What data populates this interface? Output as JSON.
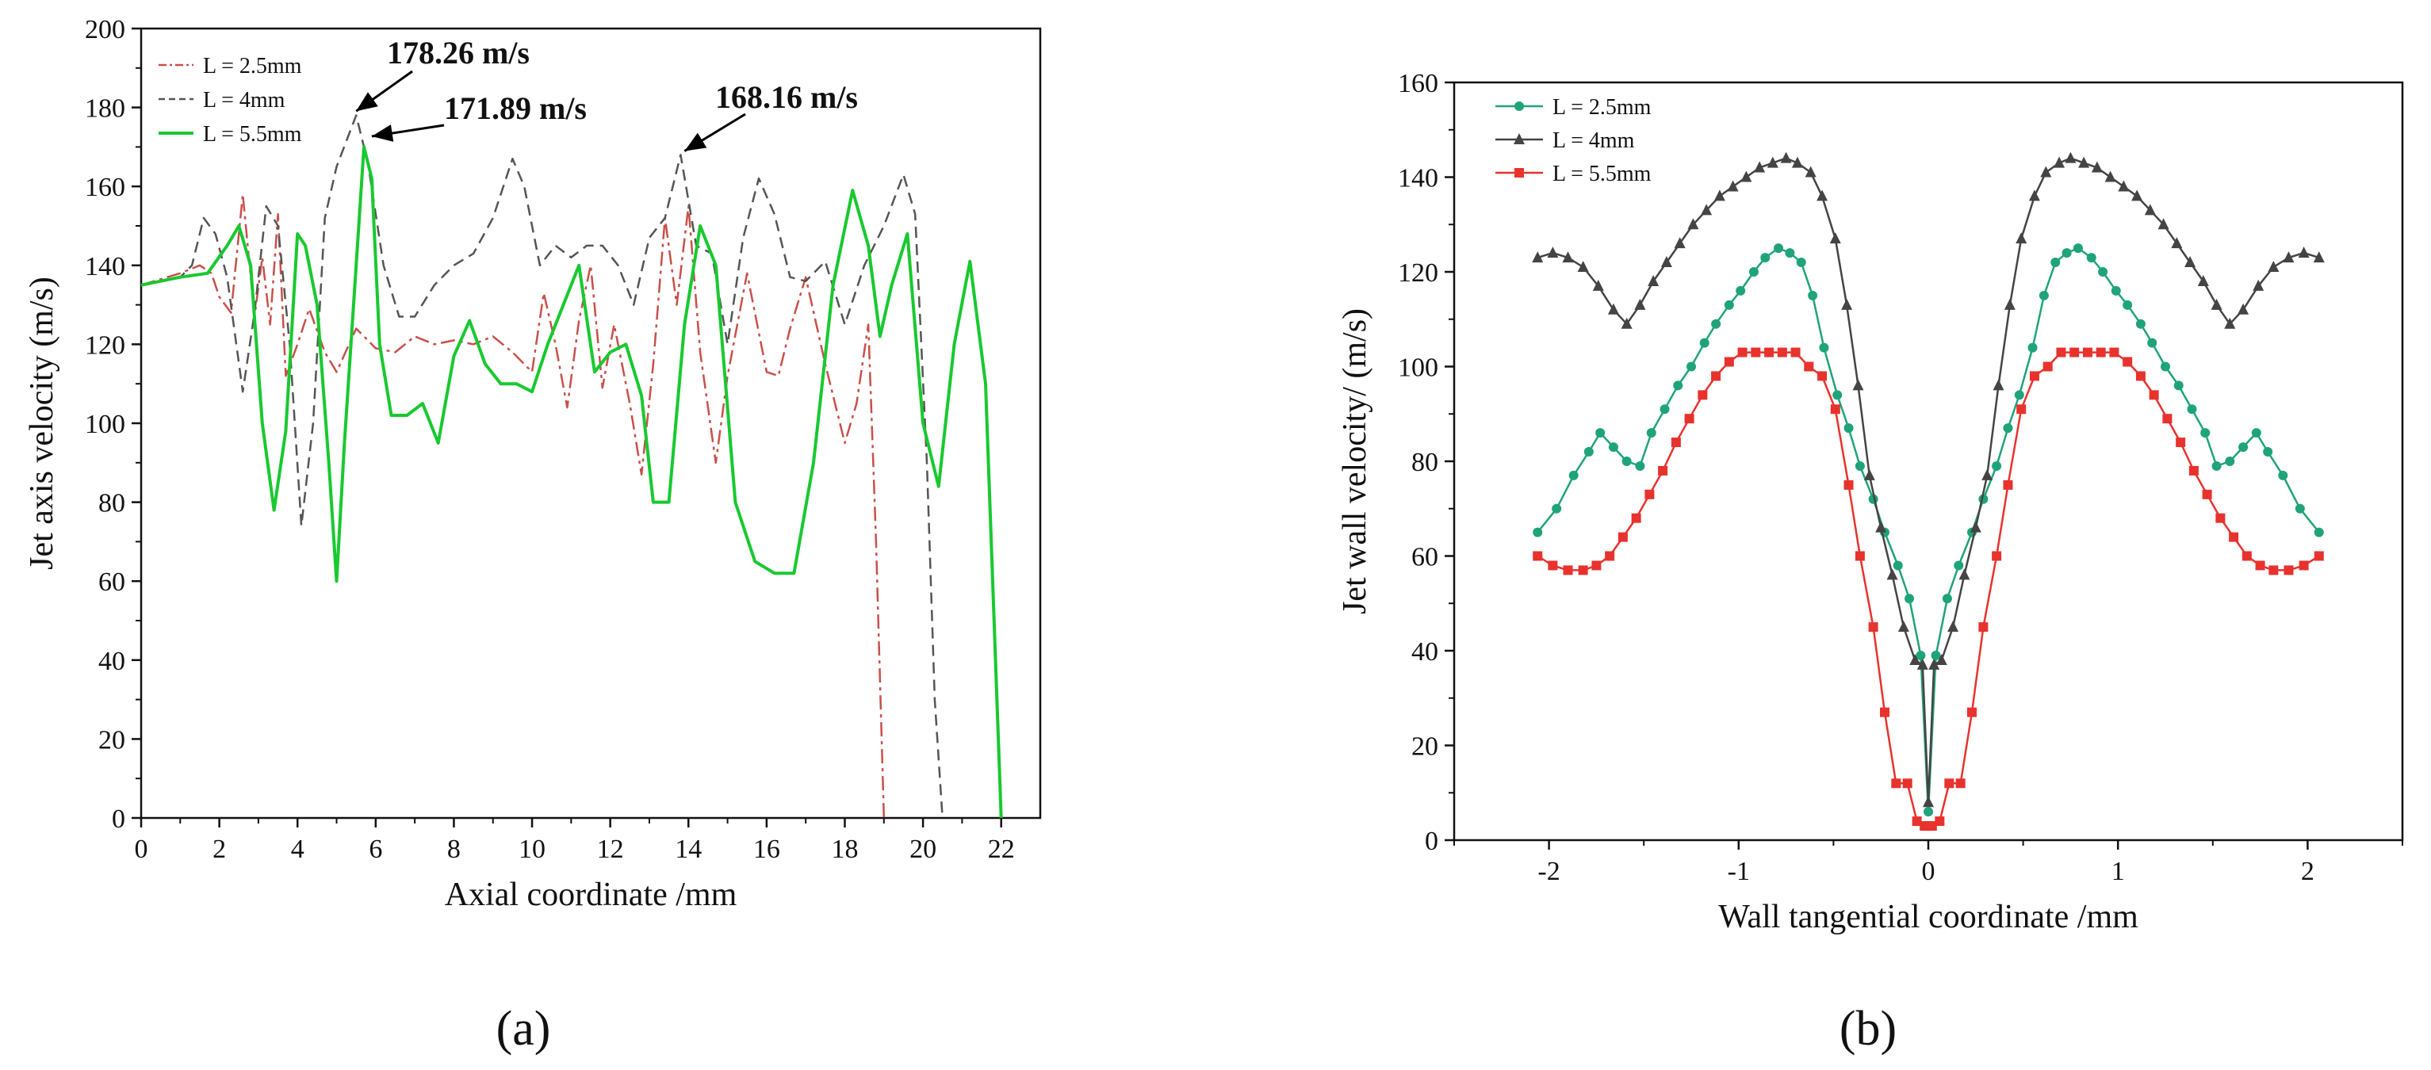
{
  "chart_data": [
    {
      "panel_label": "(a)",
      "type": "line",
      "xlabel": "Axial coordinate /mm",
      "ylabel": "Jet axis velocity (m/s)",
      "xlim": [
        0,
        23
      ],
      "ylim": [
        0,
        200
      ],
      "xticks": [
        0,
        2,
        4,
        6,
        8,
        10,
        12,
        14,
        16,
        18,
        20,
        22
      ],
      "yticks": [
        0,
        20,
        40,
        60,
        80,
        100,
        120,
        140,
        160,
        180,
        200
      ],
      "grid": false,
      "legend_position": "top-left",
      "series": [
        {
          "name": "L = 2.5mm",
          "color": "#c8504a",
          "style": "dashdot",
          "x": [
            0,
            1,
            1.5,
            1.8,
            2.0,
            2.3,
            2.6,
            2.9,
            3.1,
            3.3,
            3.5,
            3.7,
            4.0,
            4.3,
            4.7,
            5.0,
            5.5,
            6.0,
            6.5,
            7.0,
            7.5,
            8.0,
            8.5,
            9.0,
            9.5,
            10.0,
            10.3,
            10.6,
            10.9,
            11.2,
            11.5,
            11.8,
            12.1,
            12.5,
            12.8,
            13.1,
            13.4,
            13.7,
            14.0,
            14.3,
            14.7,
            15.0,
            15.5,
            16.0,
            16.3,
            16.6,
            17.0,
            17.5,
            18.0,
            18.3,
            18.6,
            18.8,
            19.0
          ],
          "y": [
            135,
            138,
            140,
            138,
            132,
            128,
            158,
            127,
            142,
            125,
            153,
            112,
            120,
            129,
            118,
            113,
            124,
            119,
            118,
            122,
            120,
            121,
            120,
            122,
            118,
            113,
            133,
            120,
            104,
            126,
            140,
            109,
            125,
            105,
            87,
            115,
            152,
            130,
            155,
            118,
            90,
            112,
            138,
            113,
            112,
            124,
            137,
            115,
            95,
            105,
            125,
            70,
            0
          ]
        },
        {
          "name": "L = 4mm",
          "color": "#555555",
          "style": "dashed",
          "x": [
            0,
            1,
            1.3,
            1.6,
            1.9,
            2.2,
            2.6,
            2.9,
            3.2,
            3.5,
            3.8,
            4.1,
            4.4,
            4.7,
            5.0,
            5.5,
            5.8,
            6.2,
            6.6,
            7.0,
            7.5,
            8.0,
            8.5,
            9.0,
            9.5,
            9.8,
            10.2,
            10.6,
            11.0,
            11.4,
            11.8,
            12.2,
            12.6,
            13.0,
            13.4,
            13.8,
            14.2,
            14.6,
            15.0,
            15.4,
            15.8,
            16.2,
            16.6,
            17.0,
            17.5,
            18.0,
            18.5,
            19.0,
            19.5,
            19.8,
            20.1,
            20.3,
            20.5
          ],
          "y": [
            135,
            137,
            140,
            152,
            148,
            137,
            108,
            128,
            155,
            150,
            120,
            74,
            100,
            152,
            165,
            178,
            166,
            140,
            127,
            127,
            135,
            140,
            143,
            152,
            167,
            160,
            140,
            145,
            142,
            145,
            145,
            140,
            130,
            147,
            152,
            168,
            145,
            143,
            120,
            147,
            162,
            153,
            137,
            136,
            141,
            125,
            140,
            150,
            163,
            153,
            90,
            30,
            0
          ]
        },
        {
          "name": "L = 5.5mm",
          "color": "#18c92f",
          "style": "solid",
          "x": [
            0,
            1,
            1.7,
            2.2,
            2.5,
            2.8,
            3.1,
            3.4,
            3.7,
            4.0,
            4.2,
            4.5,
            4.8,
            5.0,
            5.2,
            5.5,
            5.7,
            5.9,
            6.1,
            6.4,
            6.8,
            7.2,
            7.6,
            8.0,
            8.4,
            8.8,
            9.2,
            9.6,
            10.0,
            10.4,
            10.8,
            11.2,
            11.6,
            12.0,
            12.4,
            12.8,
            13.1,
            13.5,
            13.9,
            14.3,
            14.7,
            15.2,
            15.7,
            16.2,
            16.7,
            17.2,
            17.7,
            18.2,
            18.6,
            18.9,
            19.2,
            19.6,
            20.0,
            20.4,
            20.8,
            21.2,
            21.6,
            22.0
          ],
          "y": [
            135,
            137,
            138,
            145,
            150,
            140,
            100,
            78,
            98,
            148,
            145,
            130,
            90,
            60,
            95,
            140,
            170,
            162,
            120,
            102,
            102,
            105,
            95,
            117,
            126,
            115,
            110,
            110,
            108,
            120,
            130,
            140,
            113,
            118,
            120,
            107,
            80,
            80,
            125,
            150,
            140,
            80,
            65,
            62,
            62,
            90,
            135,
            159,
            145,
            122,
            135,
            148,
            100,
            84,
            120,
            141,
            110,
            0
          ]
        }
      ],
      "annotations": [
        {
          "text": "178.26 m/s",
          "x": 5.5,
          "y": 178.26
        },
        {
          "text": "171.89 m/s",
          "x": 5.9,
          "y": 171.89
        },
        {
          "text": "168.16 m/s",
          "x": 13.9,
          "y": 168.16
        }
      ]
    },
    {
      "panel_label": "(b)",
      "type": "line",
      "xlabel": "Wall tangential coordinate /mm",
      "ylabel": "Jet wall velocity/ (m/s)",
      "xlim": [
        -2.5,
        2.5
      ],
      "ylim": [
        0,
        160
      ],
      "xticks": [
        -2,
        -1,
        0,
        1,
        2
      ],
      "yticks": [
        0,
        20,
        40,
        60,
        80,
        100,
        120,
        140,
        160
      ],
      "grid": false,
      "legend_position": "top-left",
      "series": [
        {
          "name": "L = 2.5mm",
          "color": "#1fa37a",
          "marker": "circle",
          "x": [
            -2.06,
            -1.96,
            -1.87,
            -1.79,
            -1.73,
            -1.66,
            -1.59,
            -1.52,
            -1.46,
            -1.39,
            -1.32,
            -1.25,
            -1.18,
            -1.12,
            -1.05,
            -0.99,
            -0.92,
            -0.86,
            -0.79,
            -0.73,
            -0.67,
            -0.61,
            -0.55,
            -0.48,
            -0.42,
            -0.36,
            -0.29,
            -0.23,
            -0.16,
            -0.1,
            -0.04,
            0,
            0.04,
            0.1,
            0.16,
            0.23,
            0.29,
            0.36,
            0.42,
            0.48,
            0.55,
            0.61,
            0.67,
            0.73,
            0.79,
            0.86,
            0.92,
            0.99,
            1.05,
            1.12,
            1.18,
            1.25,
            1.32,
            1.39,
            1.46,
            1.52,
            1.59,
            1.66,
            1.73,
            1.79,
            1.87,
            1.96,
            2.06
          ],
          "y": [
            65,
            70,
            77,
            82,
            86,
            83,
            80,
            79,
            86,
            91,
            96,
            100,
            105,
            109,
            113,
            116,
            120,
            123,
            125,
            124,
            122,
            115,
            104,
            94,
            87,
            79,
            72,
            65,
            58,
            51,
            39,
            6,
            39,
            51,
            58,
            65,
            72,
            79,
            87,
            94,
            104,
            115,
            122,
            124,
            125,
            123,
            120,
            116,
            113,
            109,
            105,
            100,
            96,
            91,
            86,
            79,
            80,
            83,
            86,
            82,
            77,
            70,
            65
          ]
        },
        {
          "name": "L = 4mm",
          "color": "#444444",
          "marker": "triangle",
          "x": [
            -2.06,
            -1.98,
            -1.9,
            -1.82,
            -1.74,
            -1.66,
            -1.59,
            -1.52,
            -1.45,
            -1.38,
            -1.31,
            -1.24,
            -1.17,
            -1.1,
            -1.03,
            -0.96,
            -0.89,
            -0.82,
            -0.75,
            -0.69,
            -0.62,
            -0.56,
            -0.49,
            -0.43,
            -0.37,
            -0.31,
            -0.25,
            -0.19,
            -0.13,
            -0.07,
            -0.03,
            0,
            0.03,
            0.07,
            0.13,
            0.19,
            0.25,
            0.31,
            0.37,
            0.43,
            0.49,
            0.56,
            0.62,
            0.69,
            0.75,
            0.82,
            0.89,
            0.96,
            1.03,
            1.1,
            1.17,
            1.24,
            1.31,
            1.38,
            1.45,
            1.52,
            1.59,
            1.66,
            1.74,
            1.82,
            1.9,
            1.98,
            2.06
          ],
          "y": [
            123,
            124,
            123,
            121,
            117,
            112,
            109,
            113,
            118,
            122,
            126,
            130,
            133,
            136,
            138,
            140,
            142,
            143,
            144,
            143,
            141,
            136,
            127,
            113,
            96,
            77,
            66,
            56,
            45,
            38,
            37,
            8,
            37,
            38,
            45,
            56,
            66,
            77,
            96,
            113,
            127,
            136,
            141,
            143,
            144,
            143,
            142,
            140,
            138,
            136,
            133,
            130,
            126,
            122,
            118,
            113,
            109,
            112,
            117,
            121,
            123,
            124,
            123
          ]
        },
        {
          "name": "L = 5.5mm",
          "color": "#e8322d",
          "marker": "square",
          "x": [
            -2.06,
            -1.98,
            -1.9,
            -1.82,
            -1.75,
            -1.68,
            -1.61,
            -1.54,
            -1.47,
            -1.4,
            -1.33,
            -1.26,
            -1.19,
            -1.12,
            -1.05,
            -0.98,
            -0.91,
            -0.84,
            -0.77,
            -0.7,
            -0.63,
            -0.56,
            -0.49,
            -0.42,
            -0.36,
            -0.29,
            -0.23,
            -0.17,
            -0.11,
            -0.06,
            -0.02,
            0,
            0.02,
            0.06,
            0.11,
            0.17,
            0.23,
            0.29,
            0.36,
            0.42,
            0.49,
            0.56,
            0.63,
            0.7,
            0.77,
            0.84,
            0.91,
            0.98,
            1.05,
            1.12,
            1.19,
            1.26,
            1.33,
            1.4,
            1.47,
            1.54,
            1.61,
            1.68,
            1.75,
            1.82,
            1.9,
            1.98,
            2.06
          ],
          "y": [
            60,
            58,
            57,
            57,
            58,
            60,
            64,
            68,
            73,
            78,
            84,
            89,
            94,
            98,
            101,
            103,
            103,
            103,
            103,
            103,
            100,
            98,
            91,
            75,
            60,
            45,
            27,
            12,
            12,
            4,
            3,
            3,
            3,
            4,
            12,
            12,
            27,
            45,
            60,
            75,
            91,
            98,
            100,
            103,
            103,
            103,
            103,
            103,
            101,
            98,
            94,
            89,
            84,
            78,
            73,
            68,
            64,
            60,
            58,
            57,
            57,
            58,
            60
          ]
        }
      ]
    }
  ]
}
